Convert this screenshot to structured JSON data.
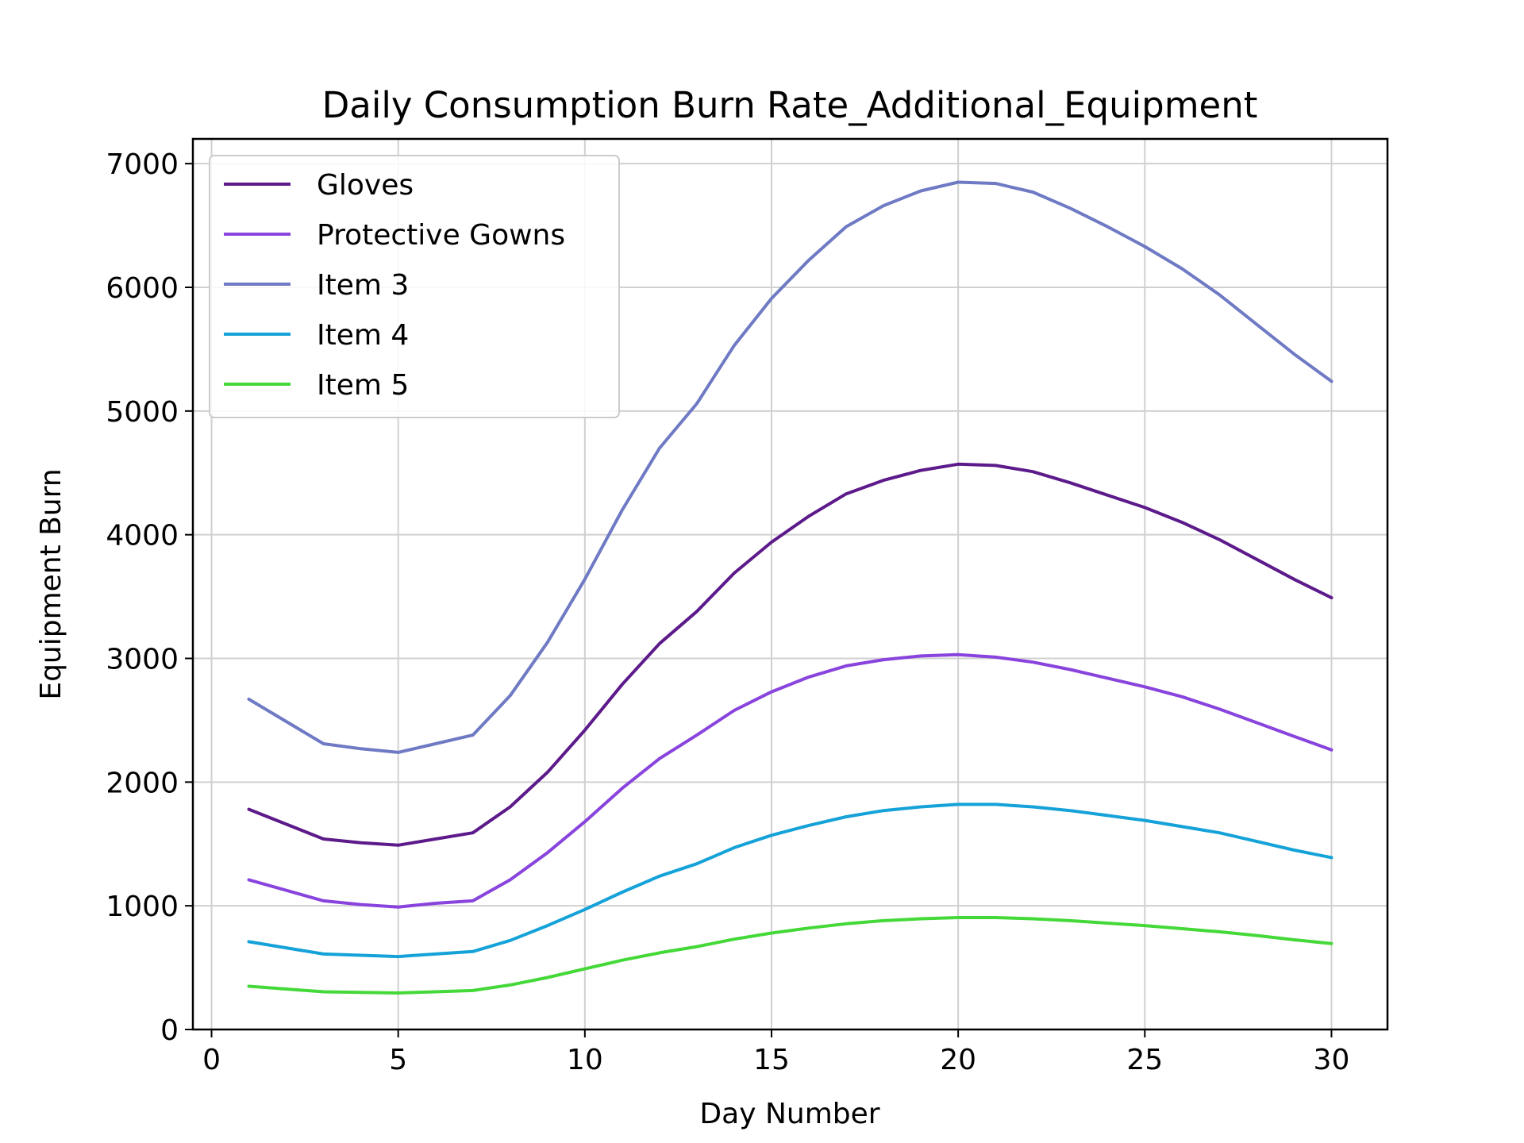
{
  "chart_data": {
    "type": "line",
    "title": "Daily Consumption Burn Rate_Additional_Equipment",
    "xlabel": "Day Number",
    "ylabel": "Equipment Burn",
    "xlim": [
      -0.5,
      31.5
    ],
    "ylim": [
      0,
      7200
    ],
    "x_ticks": [
      0,
      5,
      10,
      15,
      20,
      25,
      30
    ],
    "y_ticks": [
      0,
      1000,
      2000,
      3000,
      4000,
      5000,
      6000,
      7000
    ],
    "grid": true,
    "legend_position": "top-left",
    "x": [
      1,
      3,
      4,
      5,
      6,
      7,
      8,
      9,
      10,
      11,
      12,
      13,
      14,
      15,
      16,
      17,
      18,
      19,
      20,
      21,
      22,
      23,
      24,
      25,
      26,
      27,
      28,
      29,
      30
    ],
    "series": [
      {
        "name": "Gloves",
        "color": "#5c1a8a",
        "values": [
          1780,
          1540,
          1510,
          1490,
          1540,
          1590,
          1800,
          2080,
          2420,
          2790,
          3120,
          3380,
          3690,
          3940,
          4150,
          4330,
          4440,
          4520,
          4570,
          4560,
          4510,
          4420,
          4320,
          4220,
          4100,
          3960,
          3800,
          3640,
          3490
        ]
      },
      {
        "name": "Protective Gowns",
        "color": "#8844dd",
        "values": [
          1210,
          1040,
          1010,
          990,
          1020,
          1040,
          1210,
          1430,
          1680,
          1950,
          2190,
          2380,
          2580,
          2730,
          2850,
          2940,
          2990,
          3020,
          3030,
          3010,
          2970,
          2910,
          2840,
          2770,
          2690,
          2590,
          2480,
          2370,
          2260
        ]
      },
      {
        "name": "Item 3",
        "color": "#6f7ac4",
        "values": [
          2670,
          2310,
          2270,
          2240,
          2310,
          2380,
          2700,
          3130,
          3640,
          4200,
          4700,
          5060,
          5530,
          5910,
          6220,
          6490,
          6660,
          6780,
          6850,
          6840,
          6770,
          6640,
          6490,
          6330,
          6150,
          5940,
          5700,
          5460,
          5240
        ]
      },
      {
        "name": "Item 4",
        "color": "#15a2d8",
        "values": [
          710,
          610,
          600,
          590,
          610,
          630,
          720,
          840,
          970,
          1110,
          1240,
          1340,
          1470,
          1570,
          1650,
          1720,
          1770,
          1800,
          1820,
          1820,
          1800,
          1770,
          1730,
          1690,
          1640,
          1590,
          1520,
          1450,
          1390
        ]
      },
      {
        "name": "Item 5",
        "color": "#44d838",
        "values": [
          350,
          305,
          300,
          295,
          305,
          315,
          360,
          420,
          490,
          560,
          620,
          670,
          730,
          780,
          820,
          855,
          880,
          895,
          905,
          905,
          895,
          880,
          860,
          840,
          815,
          790,
          760,
          725,
          695
        ]
      }
    ]
  }
}
